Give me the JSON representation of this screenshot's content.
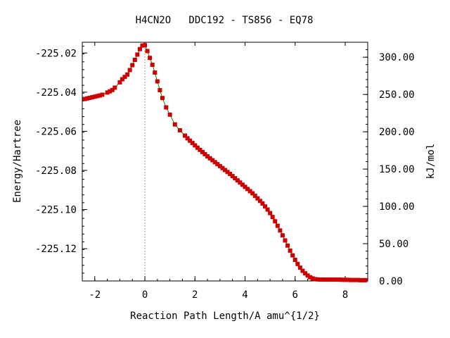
{
  "chart_data": {
    "type": "line",
    "title": "H4CN2O   DDC192 - TS856 - EQ78",
    "xlabel": "Reaction Path Length/A amu^{1/2}",
    "ylabel": "Energy/Hartree",
    "y2label": "kJ/mol",
    "xlim": [
      -2.5,
      8.9
    ],
    "ylim": [
      -225.1365,
      -225.0145
    ],
    "y2lim": [
      0,
      320
    ],
    "x_ticks": [
      -2,
      0,
      2,
      4,
      6,
      8
    ],
    "x_tick_labels": [
      "-2",
      "0",
      "2",
      "4",
      "6",
      "8"
    ],
    "y_ticks": [
      -225.02,
      -225.04,
      -225.06,
      -225.08,
      -225.1,
      -225.12
    ],
    "y_tick_labels": [
      "-225.02",
      "-225.04",
      "-225.06",
      "-225.08",
      "-225.10",
      "-225.12"
    ],
    "y2_ticks": [
      300,
      250,
      200,
      150,
      100,
      50,
      0
    ],
    "y2_tick_labels": [
      "300.00",
      "250.00",
      "200.00",
      "150.00",
      "100.00",
      "50.00",
      "0.00"
    ],
    "grid": false,
    "ts_marker_x": 0,
    "series": [
      {
        "color": "#cc0000",
        "line_color": "#008800",
        "x": [
          -2.4,
          -2.3,
          -2.2,
          -2.1,
          -2.0,
          -1.9,
          -1.8,
          -1.7,
          -1.5,
          -1.4,
          -1.3,
          -1.2,
          -1.0,
          -0.9,
          -0.8,
          -0.7,
          -0.6,
          -0.5,
          -0.4,
          -0.3,
          -0.2,
          -0.1,
          0.0,
          0.1,
          0.2,
          0.3,
          0.4,
          0.5,
          0.6,
          0.7,
          0.85,
          1.0,
          1.2,
          1.4,
          1.6,
          1.7,
          1.8,
          1.9,
          2.0,
          2.1,
          2.2,
          2.3,
          2.4,
          2.5,
          2.6,
          2.7,
          2.8,
          2.9,
          3.0,
          3.1,
          3.2,
          3.3,
          3.4,
          3.5,
          3.6,
          3.7,
          3.8,
          3.9,
          4.0,
          4.1,
          4.2,
          4.3,
          4.4,
          4.5,
          4.6,
          4.7,
          4.8,
          4.9,
          5.0,
          5.1,
          5.2,
          5.3,
          5.4,
          5.5,
          5.6,
          5.7,
          5.8,
          5.9,
          6.0,
          6.1,
          6.2,
          6.3,
          6.4,
          6.5,
          6.6,
          6.7,
          6.8,
          6.9,
          7.0,
          7.1,
          7.2,
          7.3,
          7.4,
          7.5,
          7.6,
          7.7,
          7.8,
          7.9,
          8.0,
          8.1,
          8.2,
          8.3,
          8.4,
          8.5,
          8.6,
          8.7,
          8.8
        ],
        "y": [
          -225.0435,
          -225.0432,
          -225.0429,
          -225.0426,
          -225.0423,
          -225.042,
          -225.0417,
          -225.0413,
          -225.0402,
          -225.0396,
          -225.0389,
          -225.0377,
          -225.035,
          -225.0334,
          -225.0322,
          -225.031,
          -225.0287,
          -225.0262,
          -225.0235,
          -225.0208,
          -225.018,
          -225.0162,
          -225.016,
          -225.019,
          -225.0225,
          -225.026,
          -225.03,
          -225.0345,
          -225.039,
          -225.043,
          -225.0478,
          -225.0515,
          -225.0565,
          -225.0595,
          -225.0622,
          -225.0636,
          -225.0648,
          -225.066,
          -225.0672,
          -225.0684,
          -225.0695,
          -225.0706,
          -225.0717,
          -225.0728,
          -225.0738,
          -225.0748,
          -225.0758,
          -225.0768,
          -225.0778,
          -225.0788,
          -225.0798,
          -225.0808,
          -225.0818,
          -225.0829,
          -225.084,
          -225.0851,
          -225.0862,
          -225.0873,
          -225.0884,
          -225.0895,
          -225.0906,
          -225.0917,
          -225.093,
          -225.0943,
          -225.0956,
          -225.0969,
          -225.0984,
          -225.1,
          -225.1018,
          -225.1038,
          -225.106,
          -225.1083,
          -225.1107,
          -225.1132,
          -225.1158,
          -225.1184,
          -225.121,
          -225.1234,
          -225.1257,
          -225.1278,
          -225.1297,
          -225.1313,
          -225.1326,
          -225.1337,
          -225.1346,
          -225.1352,
          -225.1356,
          -225.1357,
          -225.1358,
          -225.1358,
          -225.1358,
          -225.1358,
          -225.1358,
          -225.1358,
          -225.1358,
          -225.1358,
          -225.1358,
          -225.1359,
          -225.1359,
          -225.1359,
          -225.136,
          -225.136,
          -225.136,
          -225.136,
          -225.1361,
          -225.1361,
          -225.1361
        ]
      }
    ]
  }
}
